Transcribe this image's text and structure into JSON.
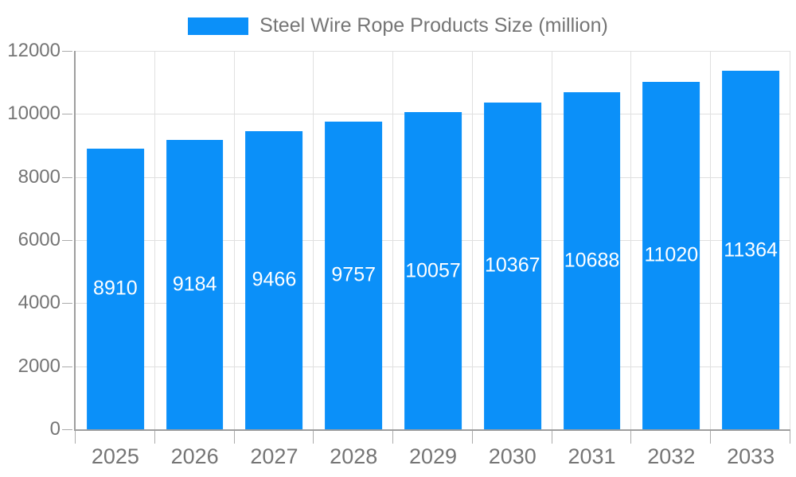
{
  "legend": {
    "label": "Steel Wire Rope Products Size (million)"
  },
  "chart_data": {
    "type": "bar",
    "title": "Steel Wire Rope Products Size (million)",
    "categories": [
      "2025",
      "2026",
      "2027",
      "2028",
      "2029",
      "2030",
      "2031",
      "2032",
      "2033"
    ],
    "values": [
      8910,
      9184,
      9466,
      9757,
      10057,
      10367,
      10688,
      11020,
      11364
    ],
    "xlabel": "",
    "ylabel": "",
    "ylim": [
      0,
      12000
    ],
    "y_ticks": [
      0,
      2000,
      4000,
      6000,
      8000,
      10000,
      12000
    ],
    "grid": true,
    "legend_position": "top-center",
    "bar_width_fraction": 0.72
  },
  "colors": {
    "bar": "#0b90f9",
    "value_label": "#ffffff",
    "axis_line": "#9e9e9e",
    "tick": "#ababab",
    "grid": "#e0e0e0",
    "text": "#757575"
  }
}
